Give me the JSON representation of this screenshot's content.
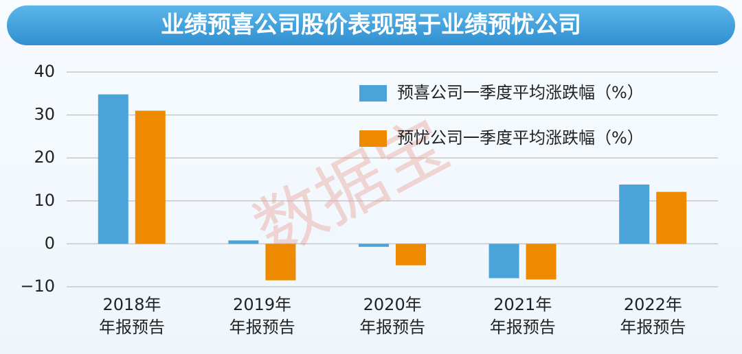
{
  "chart_data": {
    "type": "bar",
    "title": "业绩预喜公司股价表现强于业绩预忧公司",
    "watermark": "数据宝",
    "categories": [
      "2018年\n年报预告",
      "2019年\n年报预告",
      "2020年\n年报预告",
      "2021年\n年报预告",
      "2022年\n年报预告"
    ],
    "series": [
      {
        "name": "预喜公司一季度平均涨跌幅（%）",
        "color": "#4ba3d9",
        "values": [
          34.8,
          0.8,
          -0.7,
          -8,
          13.8
        ]
      },
      {
        "name": "预忧公司一季度平均涨跌幅（%）",
        "color": "#ee8a00",
        "values": [
          31,
          -8.5,
          -5,
          -8.3,
          12.1
        ]
      }
    ],
    "ylim": [
      -10,
      40
    ],
    "yticks": [
      {
        "value": -10,
        "label": "−10"
      },
      0,
      10,
      20,
      30,
      40
    ],
    "grid": true,
    "legend": "top-right"
  }
}
